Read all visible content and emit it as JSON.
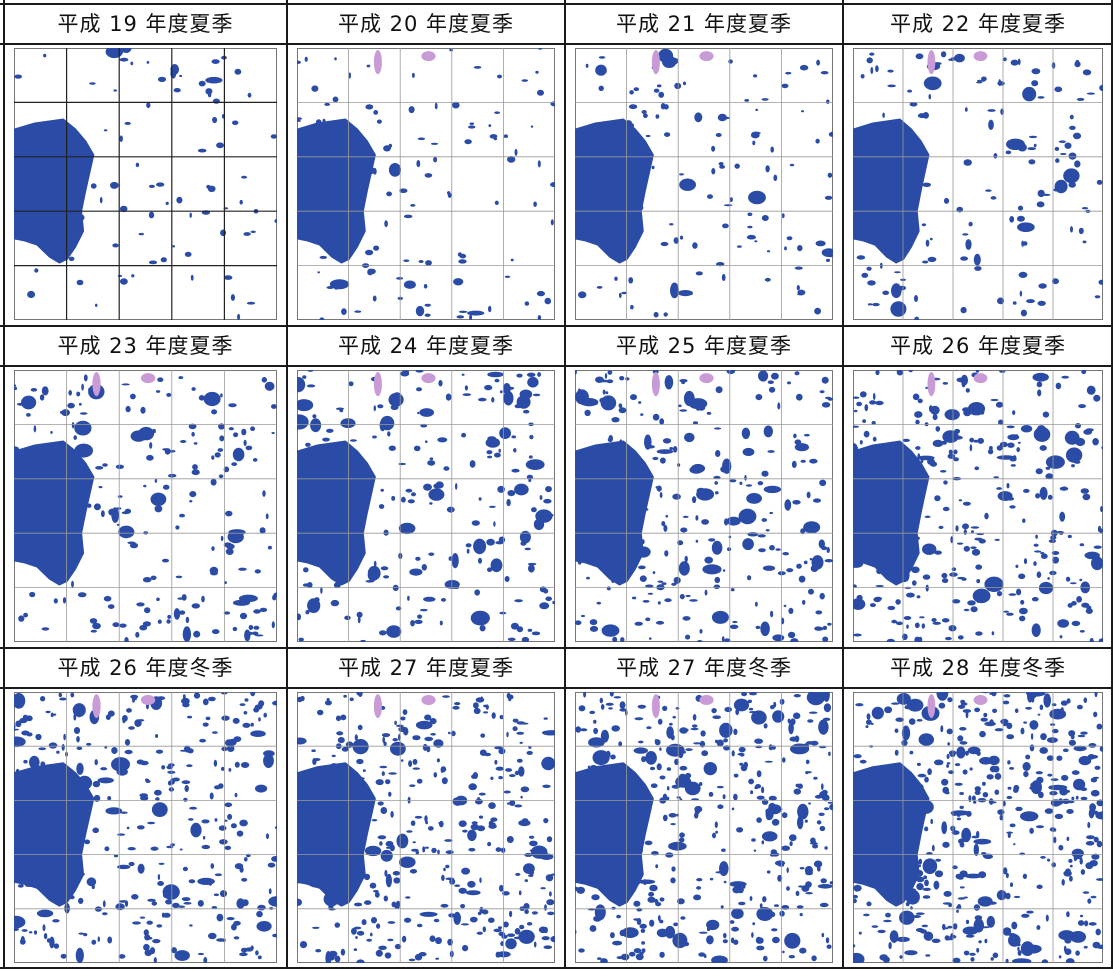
{
  "figure": {
    "panels": [
      {
        "title": "平成 19 年度夏季",
        "density": 0.8
      },
      {
        "title": "平成 20 年度夏季",
        "density": 1.0
      },
      {
        "title": "平成 21 年度夏季",
        "density": 1.05
      },
      {
        "title": "平成 22 年度夏季",
        "density": 1.25
      },
      {
        "title": "平成 23 年度夏季",
        "density": 1.7
      },
      {
        "title": "平成 24 年度夏季",
        "density": 2.0
      },
      {
        "title": "平成 25 年度夏季",
        "density": 2.4
      },
      {
        "title": "平成 26 年度夏季",
        "density": 2.8
      },
      {
        "title": "平成 26 年度冬季",
        "density": 2.9
      },
      {
        "title": "平成 27 年度夏季",
        "density": 3.3
      },
      {
        "title": "平成 27 年度冬季",
        "density": 3.7
      },
      {
        "title": "平成 28 年度冬季",
        "density": 4.1
      }
    ],
    "colors": {
      "vegetation": "#2a4ba6",
      "pink_patch": "#c89ad6",
      "grid_line": "#999999",
      "border": "#1a1a1a"
    }
  }
}
